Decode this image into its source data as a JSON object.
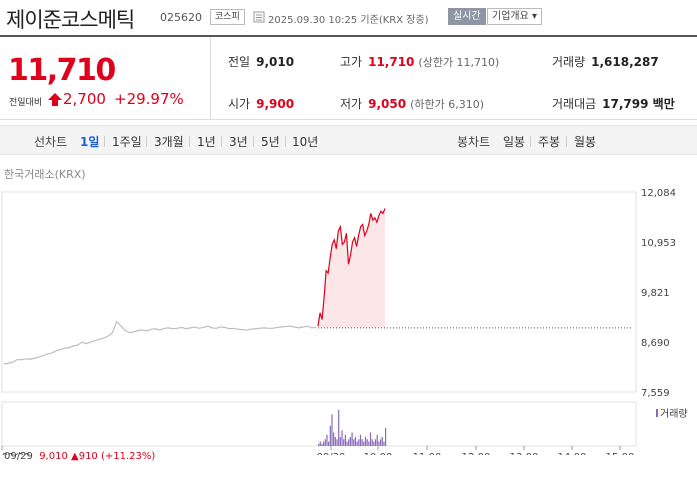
{
  "header": {
    "title": "제이준코스메틱",
    "code": "025620",
    "market": "코스피",
    "datetime": "2025.09.30 10:25 기준(KRX 장중)",
    "realtime_btn": "실시간",
    "company_btn": "기업개요 ▾"
  },
  "price": {
    "current": "11,710",
    "change_label": "전일대비",
    "change": "2,700",
    "change_pct": "+29.97%"
  },
  "stats": {
    "prev_close_label": "전일",
    "prev_close": "9,010",
    "high_label": "고가",
    "high": "11,710",
    "upper_limit": "(상한가 11,710)",
    "volume_label": "거래량",
    "volume": "1,618,287",
    "open_label": "시가",
    "open": "9,900",
    "low_label": "저가",
    "low": "9,050",
    "lower_limit": "(하한가 6,310)",
    "amount_label": "거래대금",
    "amount": "17,799 백만"
  },
  "tabs": {
    "line_label": "선차트",
    "line_items": [
      "1일",
      "1주일",
      "3개월",
      "1년",
      "3년",
      "5년",
      "10년"
    ],
    "candle_label": "봉차트",
    "candle_items": [
      "일봉",
      "주봉",
      "월봉"
    ]
  },
  "source": "한국거래소(KRX)",
  "colors": {
    "up": "#e0001b",
    "accent": "#1c5fd6",
    "volume": "#8a6ab8"
  },
  "chart_data": {
    "type": "line",
    "title": "",
    "ylabel": "",
    "xlabel": "",
    "y_ticks": [
      "12,084",
      "10,953",
      "9,821",
      "8,690",
      "7,559"
    ],
    "ylim": [
      7559,
      12084
    ],
    "x_ticks": [
      "09/29",
      "09/30",
      "10:00",
      "11:00",
      "12:00",
      "13:00",
      "14:00",
      "15:00"
    ],
    "prev_close_line": 9010,
    "volume_label": "거래량",
    "series": [
      {
        "name": "",
        "day": "09/29",
        "values": [
          8190,
          8210,
          8230,
          8290,
          8290,
          8310,
          8300,
          8320,
          8350,
          8380,
          8420,
          8440,
          8490,
          8520,
          8550,
          8560,
          8600,
          8620,
          8690,
          8650,
          8690,
          8720,
          8750,
          8780,
          8820,
          8900,
          9150,
          9050,
          8950,
          8900,
          8920,
          8950,
          8960,
          8940,
          8980,
          8990,
          8960,
          9000,
          9010,
          8990,
          9000,
          9020,
          8990,
          9010,
          9030,
          9000,
          9020,
          9050,
          9010,
          9000,
          9030,
          9020,
          8990,
          9000,
          8980,
          8970,
          8960,
          8980,
          8990,
          9000,
          9010,
          9000,
          9000,
          9020,
          9030,
          9040,
          9050,
          9030,
          9010,
          9030,
          9050,
          9010,
          9020
        ]
      },
      {
        "name": "",
        "day": "09/30",
        "values": [
          9050,
          9350,
          9200,
          9700,
          10300,
          10250,
          10600,
          10900,
          11000,
          10800,
          11200,
          11300,
          10900,
          10950,
          11150,
          10450,
          10650,
          10950,
          11050,
          10850,
          11100,
          11300,
          11350,
          11100,
          11200,
          11350,
          11600,
          11450,
          11500,
          11400,
          11550,
          11650,
          11600,
          11710
        ]
      }
    ],
    "volume": [
      1,
      2,
      1,
      2,
      3,
      5,
      2,
      9,
      14,
      6,
      4,
      3,
      16,
      4,
      7,
      3,
      5,
      2,
      3,
      4,
      6,
      3,
      4,
      2,
      3,
      5,
      3,
      2,
      4,
      3,
      2,
      6,
      3,
      2,
      3,
      5,
      2,
      3,
      4,
      2,
      8
    ]
  },
  "bottom": {
    "day": "09/29",
    "close": "9,010",
    "change": "▲910",
    "pct": "(+11.23%)"
  }
}
